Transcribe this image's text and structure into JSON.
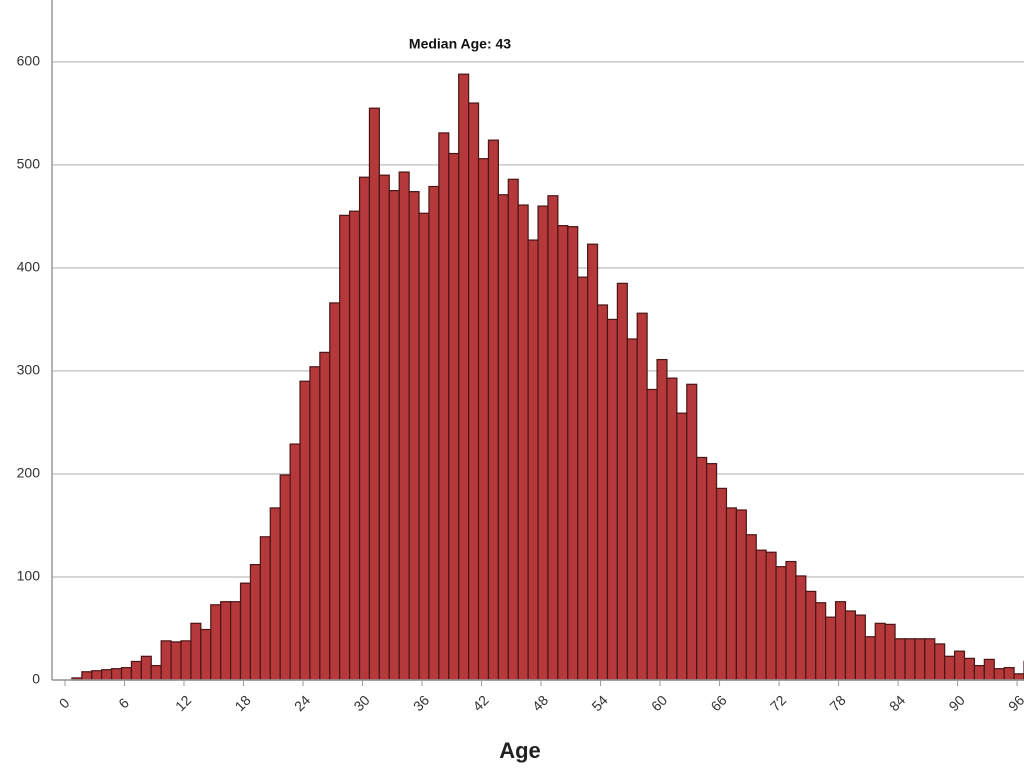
{
  "chart_data": {
    "type": "histogram",
    "annotation": "Median Age: 43",
    "x_label": "Age",
    "bins": [
      0,
      1,
      2,
      3,
      4,
      5,
      6,
      7,
      8,
      9,
      10,
      11,
      12,
      13,
      14,
      15,
      16,
      17,
      18,
      19,
      20,
      21,
      22,
      23,
      24,
      25,
      26,
      27,
      28,
      29,
      30,
      31,
      32,
      33,
      34,
      35,
      36,
      37,
      38,
      39,
      40,
      41,
      42,
      43,
      44,
      45,
      46,
      47,
      48,
      49,
      50,
      51,
      52,
      53,
      54,
      55,
      56,
      57,
      58,
      59,
      60,
      61,
      62,
      63,
      64,
      65,
      66,
      67,
      68,
      69,
      70,
      71,
      72,
      73,
      74,
      75,
      76,
      77,
      78,
      79,
      80,
      81,
      82,
      83,
      84,
      85,
      86,
      87,
      88,
      89,
      90,
      91,
      92,
      93,
      94,
      95,
      96,
      97,
      98
    ],
    "values": [
      0,
      2,
      8,
      9,
      10,
      11,
      12,
      18,
      23,
      14,
      38,
      37,
      38,
      55,
      49,
      73,
      76,
      76,
      94,
      112,
      139,
      167,
      199,
      229,
      290,
      304,
      318,
      366,
      451,
      455,
      488,
      555,
      490,
      475,
      493,
      474,
      453,
      479,
      531,
      511,
      588,
      560,
      506,
      524,
      471,
      486,
      461,
      427,
      460,
      470,
      441,
      440,
      391,
      423,
      364,
      350,
      385,
      331,
      356,
      282,
      311,
      293,
      259,
      287,
      216,
      210,
      186,
      167,
      165,
      141,
      126,
      124,
      110,
      115,
      101,
      86,
      75,
      61,
      76,
      67,
      63,
      42,
      55,
      54,
      40,
      40,
      40,
      40,
      35,
      23,
      28,
      21,
      14,
      20,
      11,
      12,
      6,
      18
    ],
    "color": "#b5393a",
    "xlim": [
      0,
      97
    ],
    "xticks": [
      0,
      6,
      12,
      18,
      24,
      30,
      36,
      42,
      48,
      54,
      60,
      66,
      72,
      78,
      84,
      90,
      96
    ],
    "ylim": [
      0,
      660
    ],
    "yticks": [
      0,
      100,
      200,
      300,
      400,
      500,
      600
    ],
    "grid": true
  }
}
